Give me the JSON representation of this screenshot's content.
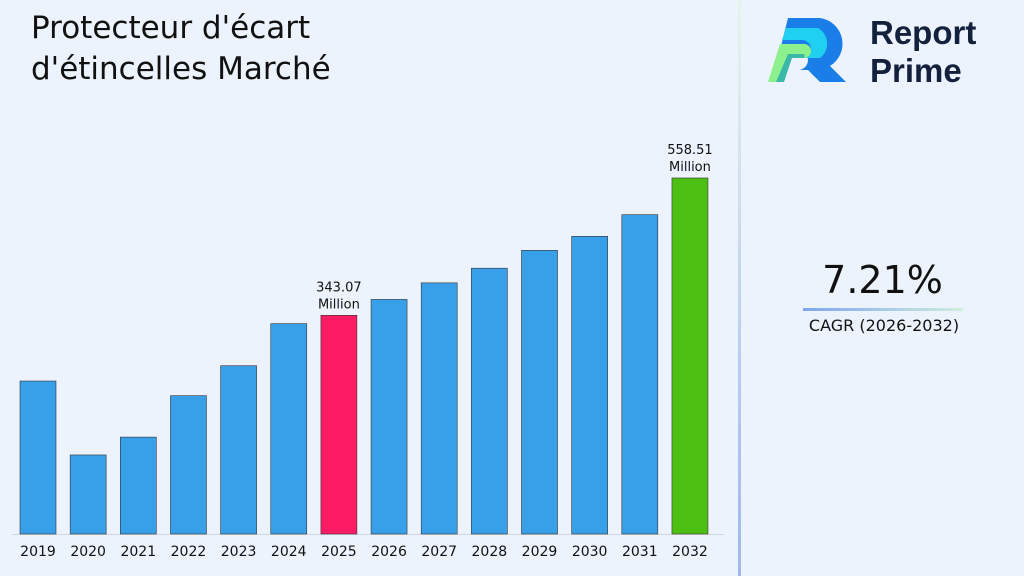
{
  "title_line1": "Protecteur d'écart",
  "title_line2": "d'étincelles Marché",
  "brand": {
    "line1": "Report",
    "line2": "Prime"
  },
  "cagr": {
    "value": "7.21%",
    "label": "CAGR (2026-2032)"
  },
  "chart_data": {
    "type": "bar",
    "categories": [
      "2019",
      "2020",
      "2021",
      "2022",
      "2023",
      "2024",
      "2025",
      "2026",
      "2027",
      "2028",
      "2029",
      "2030",
      "2031",
      "2032"
    ],
    "values": [
      240,
      124,
      152,
      217,
      264,
      330,
      343.07,
      368,
      394,
      417,
      445,
      467,
      501,
      558.51
    ],
    "colors": {
      "default": "#38a0e8",
      "highlight_2025": "#fc1c66",
      "highlight_2032": "#4cbf12"
    },
    "data_labels": {
      "2025": [
        "343.07",
        "Million"
      ],
      "2032": [
        "558.51",
        "Million"
      ]
    },
    "unit": "Million",
    "grid": false
  }
}
